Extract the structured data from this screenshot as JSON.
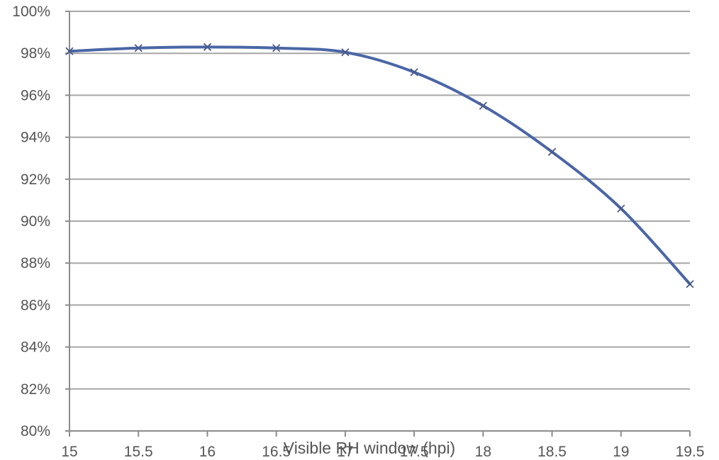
{
  "chart_data": {
    "type": "line",
    "title": "",
    "xlabel": "Visible RH window (hpi)",
    "ylabel": "",
    "x": [
      15,
      15.5,
      16,
      16.5,
      17,
      17.5,
      18,
      18.5,
      19,
      19.5
    ],
    "series": [
      {
        "values": [
          98.1,
          98.25,
          98.3,
          98.25,
          98.05,
          97.1,
          95.5,
          93.3,
          90.6,
          87.0
        ],
        "marker": "x"
      }
    ],
    "xlim": [
      15,
      19.5
    ],
    "ylim": [
      80,
      100
    ],
    "xticks": [
      15,
      15.5,
      16,
      16.5,
      17,
      17.5,
      18,
      18.5,
      19,
      19.5
    ],
    "xtick_labels": [
      "15",
      "15.5",
      "16",
      "16.5",
      "17",
      "17.5",
      "18",
      "18.5",
      "19",
      "19.5"
    ],
    "yticks": [
      80,
      82,
      84,
      86,
      88,
      90,
      92,
      94,
      96,
      98,
      100
    ],
    "ytick_labels": [
      "80%",
      "82%",
      "84%",
      "86%",
      "88%",
      "90%",
      "92%",
      "94%",
      "96%",
      "98%",
      "100%"
    ],
    "grid": "horizontal",
    "legend": "none",
    "colors": {
      "line": "#4a66a6",
      "marker": "#4a5a88",
      "grid": "#a6a6a6",
      "axis": "#8c8c8c",
      "text": "#555555"
    }
  }
}
